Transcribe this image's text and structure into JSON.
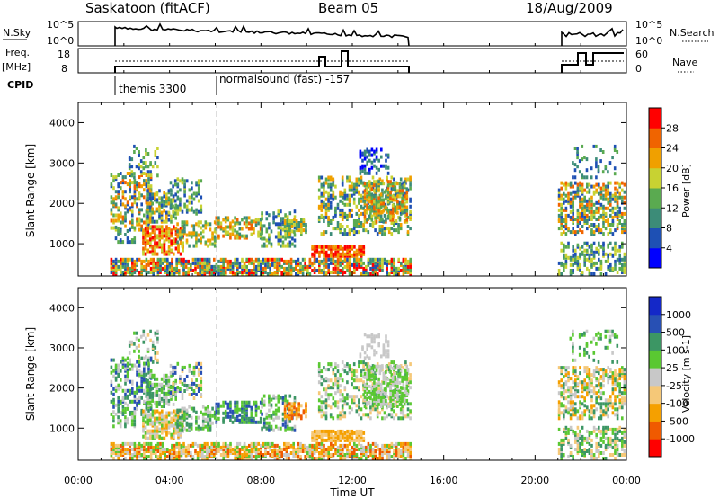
{
  "header": {
    "title": "Saskatoon (fitACF)",
    "beam": "Beam 05",
    "date": "18/Aug/2009"
  },
  "panels": {
    "nsky_label": "N.Sky",
    "nsky_ticks": [
      "10^5",
      "10^0"
    ],
    "nsearch_label": "N.Search",
    "nsearch_ticks": [
      "10^5",
      "10^0"
    ],
    "freq_label_1": "Freq.",
    "freq_label_2": "[MHz]",
    "freq_ticks": [
      "18",
      "8"
    ],
    "nave_label": "Nave",
    "nave_ticks": [
      "60",
      "0"
    ],
    "cpid_label": "CPID",
    "cpid_1": "themis 3300",
    "cpid_2": "normalsound (fast) -157"
  },
  "colors": {
    "power": [
      "#0000ff",
      "#1e50b4",
      "#3c8c78",
      "#5aaa50",
      "#c8d232",
      "#f0a000",
      "#f06400",
      "#ff0000"
    ],
    "velocity": [
      "#ff0000",
      "#f05a00",
      "#f5a000",
      "#f5c878",
      "#c8c8c8",
      "#5ac832",
      "#3c9664",
      "#2850b4",
      "#1428c8"
    ]
  },
  "chart_data": [
    {
      "type": "heatmap",
      "name_label": "Power [dB]",
      "xlabel": "",
      "ylabel": "Slant Range [km]",
      "x_ticks": [
        "00:00",
        "04:00",
        "08:00",
        "12:00",
        "16:00",
        "20:00",
        "00:00"
      ],
      "y_ticks": [
        "1000",
        "2000",
        "3000",
        "4000"
      ],
      "xlim_hours": [
        0,
        24
      ],
      "ylim_km": [
        200,
        4500
      ],
      "colorbar_ticks": [
        "4",
        "8",
        "12",
        "16",
        "20",
        "24",
        "28"
      ],
      "colorbar_range": [
        0,
        32
      ]
    },
    {
      "type": "heatmap",
      "name_label": "Velocity [m s-1]",
      "xlabel": "Time UT",
      "ylabel": "Slant Range [km]",
      "x_ticks": [
        "00:00",
        "04:00",
        "08:00",
        "12:00",
        "16:00",
        "20:00",
        "00:00"
      ],
      "y_ticks": [
        "1000",
        "2000",
        "3000",
        "4000"
      ],
      "xlim_hours": [
        0,
        24
      ],
      "ylim_km": [
        200,
        4500
      ],
      "colorbar_ticks": [
        "1000",
        "500",
        "100",
        "25",
        "-25",
        "-100",
        "-500",
        "-1000"
      ]
    }
  ]
}
